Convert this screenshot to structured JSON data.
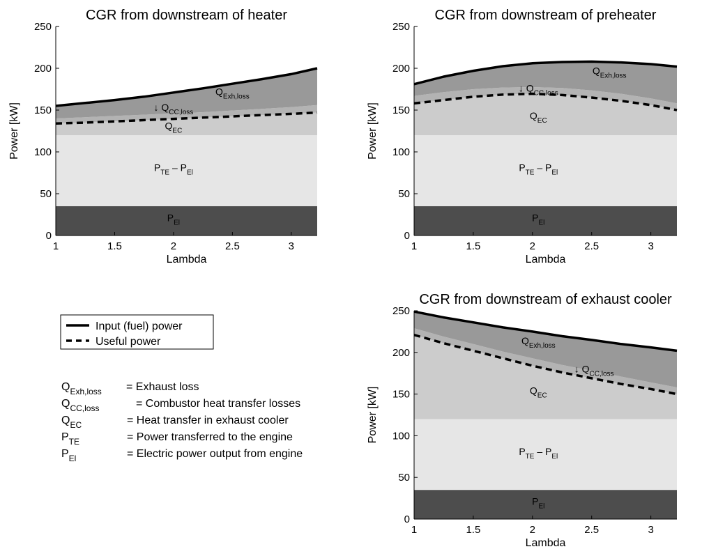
{
  "chart_data": [
    {
      "type": "area",
      "title": "CGR from downstream of heater",
      "xlabel": "Lambda",
      "ylabel": "Power [kW]",
      "xlim": [
        1,
        3.22
      ],
      "ylim": [
        0,
        250
      ],
      "xticks": [
        "1",
        "1.5",
        "2",
        "2.5",
        "3"
      ],
      "yticks": [
        "0",
        "50",
        "100",
        "150",
        "200",
        "250"
      ],
      "x": [
        1.0,
        1.25,
        1.5,
        1.75,
        2.0,
        2.25,
        2.5,
        2.75,
        3.0,
        3.22
      ],
      "series": [
        {
          "key": "pel",
          "values": [
            35,
            35,
            35,
            35,
            35,
            35,
            35,
            35,
            35,
            35
          ]
        },
        {
          "key": "pte",
          "values": [
            120,
            120,
            120,
            120,
            120,
            120,
            120,
            120,
            120,
            120
          ]
        },
        {
          "key": "qec",
          "values": [
            134,
            135,
            136.5,
            138,
            139.5,
            141,
            142.5,
            144,
            145.5,
            147
          ]
        },
        {
          "key": "qcc",
          "values": [
            140,
            141.5,
            143,
            144.5,
            146,
            147.5,
            149.5,
            151.5,
            153.5,
            156
          ]
        },
        {
          "name": "Input (fuel) power",
          "key": "input",
          "values": [
            155,
            158.5,
            162,
            166,
            171,
            176,
            181.5,
            187,
            193,
            200
          ]
        },
        {
          "name": "Useful power",
          "key": "useful",
          "values": [
            134,
            135,
            136.5,
            138,
            139.5,
            141,
            142.5,
            144,
            145.5,
            147
          ]
        }
      ],
      "annotations": [
        {
          "main": "Q",
          "sub": "Exh,loss",
          "x": 2.5,
          "y": 168
        },
        {
          "main": "↓ Q",
          "sub": "CC,loss",
          "x": 2.0,
          "y": 149
        },
        {
          "main": "Q",
          "sub": "EC",
          "x": 2.0,
          "y": 127
        },
        {
          "main": "P",
          "sub": "TE",
          "main2": " – P",
          "sub2": "El",
          "x": 2.0,
          "y": 77
        },
        {
          "main": "P",
          "sub": "El",
          "x": 2.0,
          "y": 17
        }
      ]
    },
    {
      "type": "area",
      "title": "CGR from downstream of preheater",
      "xlabel": "Lambda",
      "ylabel": "Power [kW]",
      "xlim": [
        1,
        3.22
      ],
      "ylim": [
        0,
        250
      ],
      "xticks": [
        "1",
        "1.5",
        "2",
        "2.5",
        "3"
      ],
      "yticks": [
        "0",
        "50",
        "100",
        "150",
        "200",
        "250"
      ],
      "x": [
        1.0,
        1.25,
        1.5,
        1.75,
        2.0,
        2.25,
        2.5,
        2.75,
        3.0,
        3.22
      ],
      "series": [
        {
          "key": "pel",
          "values": [
            35,
            35,
            35,
            35,
            35,
            35,
            35,
            35,
            35,
            35
          ]
        },
        {
          "key": "pte",
          "values": [
            120,
            120,
            120,
            120,
            120,
            120,
            120,
            120,
            120,
            120
          ]
        },
        {
          "key": "qec",
          "values": [
            158,
            162,
            166,
            168.5,
            169.5,
            168,
            165,
            161,
            156,
            150
          ]
        },
        {
          "key": "qcc",
          "values": [
            167,
            171.5,
            175,
            177,
            177.5,
            176.5,
            173.5,
            169.5,
            164,
            158
          ]
        },
        {
          "name": "Input (fuel) power",
          "key": "input",
          "values": [
            181,
            190,
            197,
            202.5,
            206,
            207.5,
            208,
            207,
            205,
            202
          ]
        },
        {
          "name": "Useful power",
          "key": "useful",
          "values": [
            158,
            162,
            166,
            168.5,
            169.5,
            168,
            165,
            161,
            156,
            150
          ]
        }
      ],
      "annotations": [
        {
          "main": "Q",
          "sub": "Exh,loss",
          "x": 2.65,
          "y": 193
        },
        {
          "main": "↓ Q",
          "sub": "CC,loss",
          "x": 2.05,
          "y": 172
        },
        {
          "main": "Q",
          "sub": "EC",
          "x": 2.05,
          "y": 139
        },
        {
          "main": "P",
          "sub": "TE",
          "main2": " – P",
          "sub2": "El",
          "x": 2.05,
          "y": 77
        },
        {
          "main": "P",
          "sub": "El",
          "x": 2.05,
          "y": 17
        }
      ]
    },
    {
      "type": "area",
      "title": "CGR from downstream of exhaust cooler",
      "xlabel": "Lambda",
      "ylabel": "Power [kW]",
      "xlim": [
        1,
        3.22
      ],
      "ylim": [
        0,
        250
      ],
      "xticks": [
        "1",
        "1.5",
        "2",
        "2.5",
        "3"
      ],
      "yticks": [
        "0",
        "50",
        "100",
        "150",
        "200",
        "250"
      ],
      "x": [
        1.0,
        1.25,
        1.5,
        1.75,
        2.0,
        2.25,
        2.5,
        2.75,
        3.0,
        3.22
      ],
      "series": [
        {
          "key": "pel",
          "values": [
            35,
            35,
            35,
            35,
            35,
            35,
            35,
            35,
            35,
            35
          ]
        },
        {
          "key": "pte",
          "values": [
            120,
            120,
            120,
            120,
            120,
            120,
            120,
            120,
            120,
            120
          ]
        },
        {
          "key": "qec",
          "values": [
            221,
            211,
            202,
            193,
            184,
            176,
            169,
            162,
            156,
            150
          ]
        },
        {
          "key": "qcc",
          "values": [
            229,
            219,
            210,
            201,
            193,
            185,
            178,
            171,
            164,
            158
          ]
        },
        {
          "name": "Input (fuel) power",
          "key": "input",
          "values": [
            249,
            242,
            236,
            230,
            225,
            219.5,
            215,
            210,
            206,
            202
          ]
        },
        {
          "name": "Useful power",
          "key": "useful",
          "values": [
            221,
            211,
            202,
            193,
            184,
            176,
            169,
            162,
            156,
            150
          ]
        }
      ],
      "annotations": [
        {
          "main": "Q",
          "sub": "Exh,loss",
          "x": 2.05,
          "y": 210
        },
        {
          "main": "↓ Q",
          "sub": "CC,loss",
          "x": 2.52,
          "y": 176
        },
        {
          "main": "Q",
          "sub": "EC",
          "x": 2.05,
          "y": 150
        },
        {
          "main": "P",
          "sub": "TE",
          "main2": " – P",
          "sub2": "El",
          "x": 2.05,
          "y": 77
        },
        {
          "main": "P",
          "sub": "El",
          "x": 2.05,
          "y": 17
        }
      ]
    }
  ],
  "colors": {
    "pel": "#4d4d4d",
    "pte": "#e6e6e6",
    "qec": "#cccccc",
    "qcc": "#b3b3b3",
    "exh": "#999999"
  },
  "legend": {
    "items": [
      {
        "label": "Input (fuel) power",
        "style": "solid"
      },
      {
        "label": "Useful power",
        "style": "dashed"
      }
    ]
  },
  "definitions": [
    {
      "sym": "Q",
      "sub": "Exh,loss",
      "desc": "= Exhaust loss"
    },
    {
      "sym": "Q",
      "sub": "CC,loss",
      "desc": "= Combustor heat transfer losses"
    },
    {
      "sym": "Q",
      "sub": "EC",
      "desc": "= Heat transfer in exhaust cooler"
    },
    {
      "sym": "P",
      "sub": "TE",
      "desc": "= Power transferred to the engine"
    },
    {
      "sym": "P",
      "sub": "El",
      "desc": "= Electric power output from engine"
    }
  ]
}
